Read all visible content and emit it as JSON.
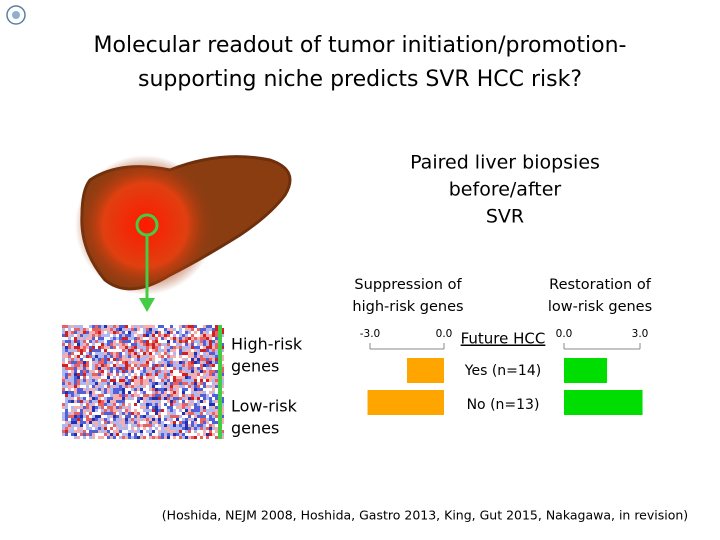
{
  "title": [
    "Molecular readout of tumor initiation/promotion-",
    "supporting niche predicts SVR HCC risk?"
  ],
  "liver_label": [
    "Paired liver biopsies",
    "before/after",
    "SVR"
  ],
  "heatmap_labels": [
    [
      "High-risk",
      "genes"
    ],
    [
      "Low-risk",
      "genes"
    ]
  ],
  "chart_data": {
    "type": "barh",
    "categories_title": "Future HCC",
    "categories": [
      "Yes (n=14)",
      "No (n=13)"
    ],
    "panels": [
      {
        "title": [
          "Suppression of",
          "high-risk genes"
        ],
        "color": "#ffa500",
        "values": [
          -1.5,
          -3.1
        ],
        "xlim": [
          -3,
          0
        ],
        "xticks": [
          {
            "value": -3,
            "label": "-3.0"
          },
          {
            "value": 0,
            "label": "0.0"
          }
        ]
      },
      {
        "title": [
          "Restoration of",
          "low-risk genes"
        ],
        "color": "#00dd00",
        "values": [
          1.7,
          3.1
        ],
        "xlim": [
          0,
          3
        ],
        "xticks": [
          {
            "value": 0,
            "label": "0.0"
          },
          {
            "value": 3,
            "label": "3.0"
          }
        ]
      }
    ]
  },
  "citation": "(Hoshida, NEJM 2008, Hoshida, Gastro 2013, King, Gut 2015, Nakagawa, in revision)"
}
